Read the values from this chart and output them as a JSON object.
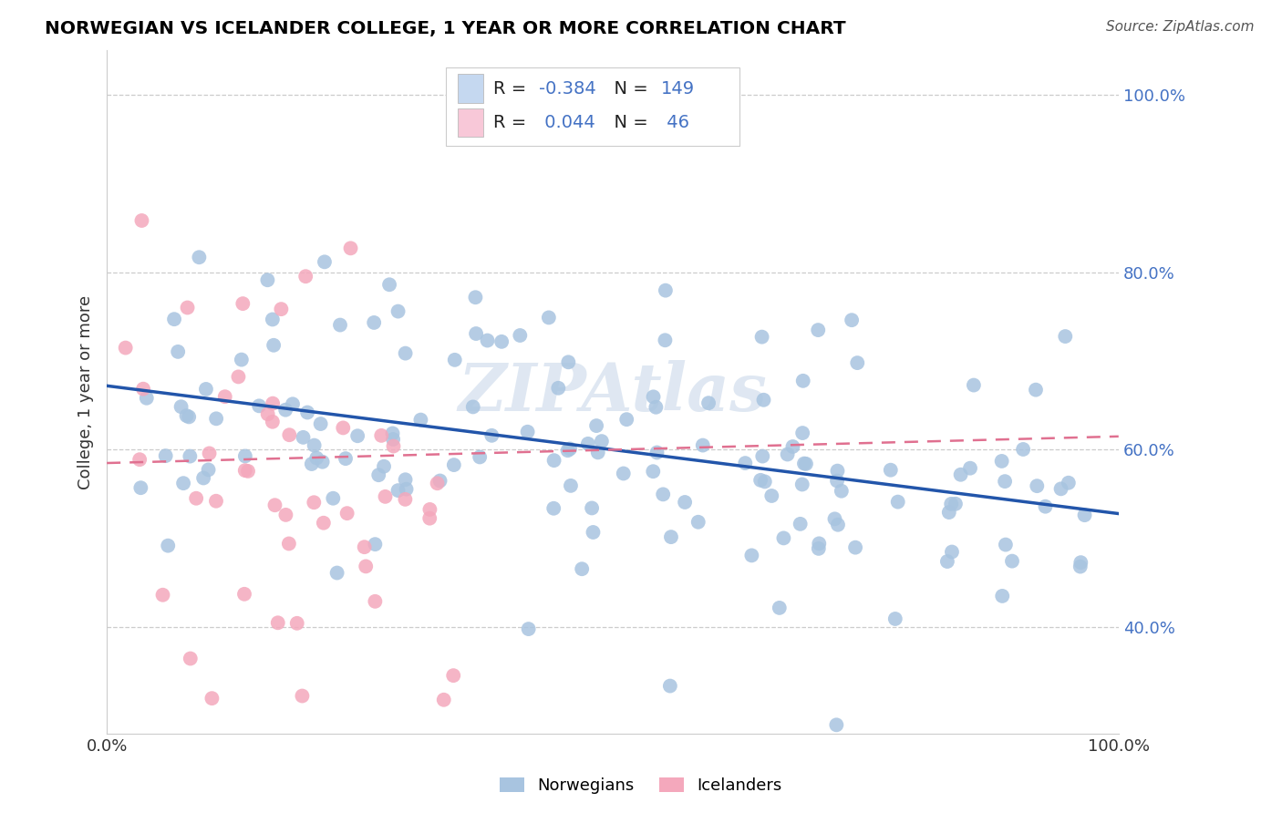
{
  "title": "NORWEGIAN VS ICELANDER COLLEGE, 1 YEAR OR MORE CORRELATION CHART",
  "source": "Source: ZipAtlas.com",
  "ylabel": "College, 1 year or more",
  "xlim": [
    0.0,
    1.0
  ],
  "ylim": [
    0.28,
    1.05
  ],
  "yticks": [
    0.4,
    0.6,
    0.8,
    1.0
  ],
  "ytick_labels": [
    "40.0%",
    "60.0%",
    "80.0%",
    "100.0%"
  ],
  "xticks": [
    0.0,
    1.0
  ],
  "xtick_labels": [
    "0.0%",
    "100.0%"
  ],
  "norwegian_R": -0.384,
  "norwegian_N": 149,
  "icelander_R": 0.044,
  "icelander_N": 46,
  "norwegian_color": "#a8c4e0",
  "icelander_color": "#f4a8bc",
  "norwegian_line_color": "#2255aa",
  "icelander_line_color": "#e07090",
  "watermark": "ZIPAtlas",
  "background_color": "#ffffff",
  "legend_box_color_norwegian": "#c5d8f0",
  "legend_box_color_icelander": "#f8c8d8",
  "tick_color": "#4472c4",
  "legend_text_color": "#4472c4",
  "norw_line_y0": 0.672,
  "norw_line_y1": 0.528,
  "icel_line_y0": 0.585,
  "icel_line_y1": 0.615
}
